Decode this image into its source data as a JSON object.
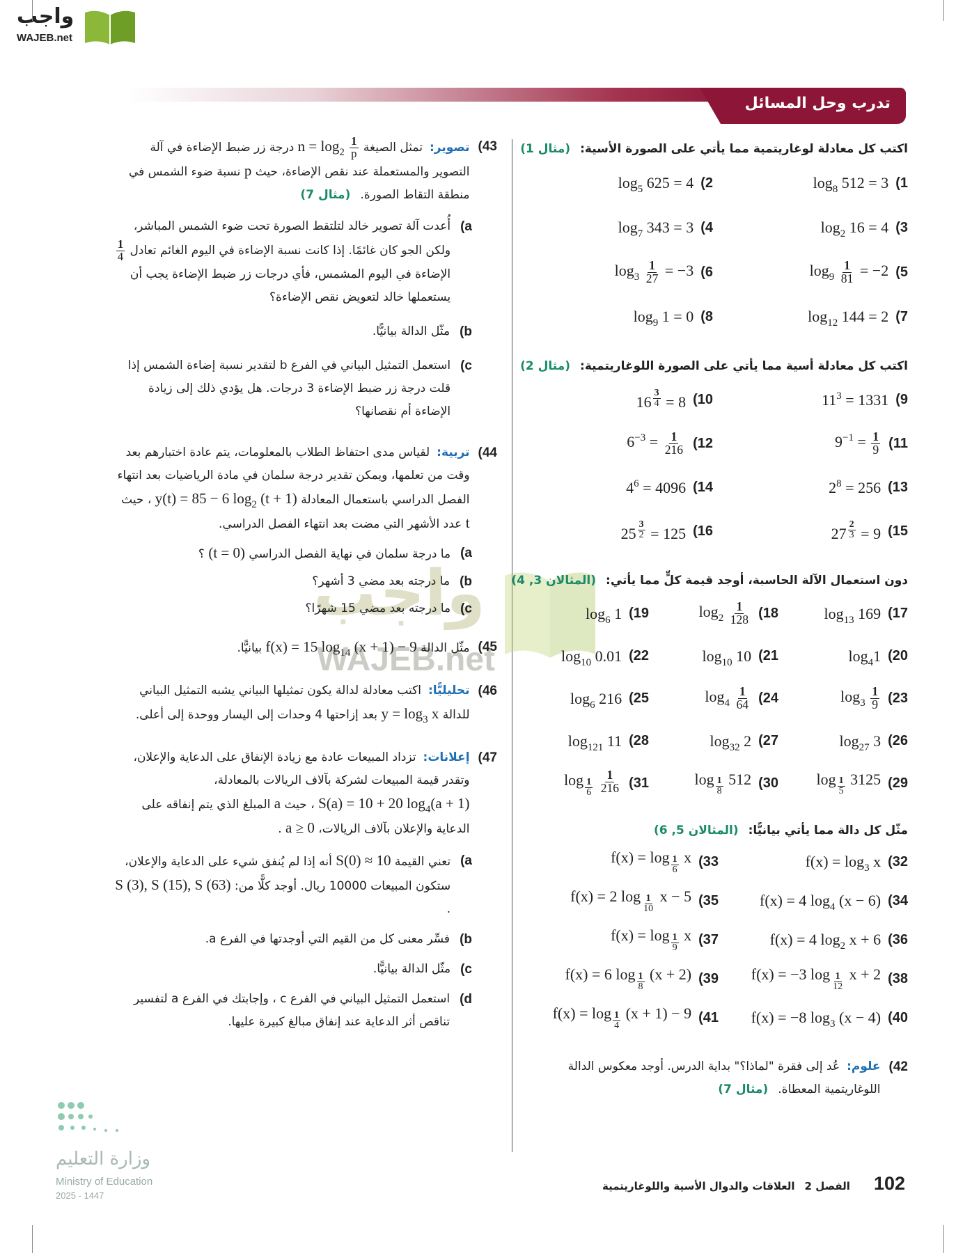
{
  "logo": {
    "ar": "واجب",
    "en": "WAJEB.net"
  },
  "header": {
    "title": "تدرب وحل المسائل"
  },
  "sections": [
    {
      "instruction": "اكتب كل معادلة لوغاريتمية مما يأتي على الصورة الأسية:",
      "ref": "(مثال 1)",
      "items": [
        {
          "num": "1)",
          "expr": "log_{8} 512 = 3"
        },
        {
          "num": "2)",
          "expr": "log_{5} 625 = 4"
        },
        {
          "num": "3)",
          "expr": "log_{2} 16 = 4"
        },
        {
          "num": "4)",
          "expr": "log_{7} 343 = 3"
        },
        {
          "num": "5)",
          "expr": "log_{9} \\frac{1}{81} = −2"
        },
        {
          "num": "6)",
          "expr": "log_{3} \\frac{1}{27} = −3"
        },
        {
          "num": "7)",
          "expr": "log_{12} 144 = 2"
        },
        {
          "num": "8)",
          "expr": "log_{9} 1 = 0"
        }
      ]
    },
    {
      "instruction": "اكتب كل معادلة أسية مما يأتي على الصورة اللوغاريتمية:",
      "ref": "(مثال 2)",
      "items": [
        {
          "num": "9)",
          "expr": "11^{3} = 1331"
        },
        {
          "num": "10)",
          "expr": "16^{\\frac{3}{4}} = 8"
        },
        {
          "num": "11)",
          "expr": "9^{−1} = \\frac{1}{9}"
        },
        {
          "num": "12)",
          "expr": "6^{−3} = \\frac{1}{216}"
        },
        {
          "num": "13)",
          "expr": "2^{8} = 256"
        },
        {
          "num": "14)",
          "expr": "4^{6} = 4096"
        },
        {
          "num": "15)",
          "expr": "27^{\\frac{2}{3}} = 9"
        },
        {
          "num": "16)",
          "expr": "25^{\\frac{3}{2}} = 125"
        }
      ]
    },
    {
      "instruction": "دون استعمال الآلة الحاسبة، أوجد قيمة كلٍّ مما يأتي:",
      "ref": "(المثالان 3, 4)",
      "items": [
        {
          "num": "17)",
          "expr": "log_{13} 169"
        },
        {
          "num": "18)",
          "expr": "log_{2} \\frac{1}{128}"
        },
        {
          "num": "19)",
          "expr": "log_{6} 1"
        },
        {
          "num": "20)",
          "expr": "log_{4}1"
        },
        {
          "num": "21)",
          "expr": "log_{10} 10"
        },
        {
          "num": "22)",
          "expr": "log_{10} 0.01"
        },
        {
          "num": "23)",
          "expr": "log_{3} \\frac{1}{9}"
        },
        {
          "num": "24)",
          "expr": "log_{4} \\frac{1}{64}"
        },
        {
          "num": "25)",
          "expr": "log_{6} 216"
        },
        {
          "num": "26)",
          "expr": "log_{27} 3"
        },
        {
          "num": "27)",
          "expr": "log_{32} 2"
        },
        {
          "num": "28)",
          "expr": "log_{121} 11"
        },
        {
          "num": "29)",
          "expr": "log_{\\frac{1}{5}} 3125"
        },
        {
          "num": "30)",
          "expr": "log_{\\frac{1}{8}} 512"
        },
        {
          "num": "31)",
          "expr": "log_{\\frac{1}{6}} \\frac{1}{216}"
        }
      ]
    },
    {
      "instruction": "مثّل كل دالة مما يأتي بيانيًّا:",
      "ref": "(المثالان 5, 6)",
      "items": [
        {
          "num": "32)",
          "expr": "f(x) = log_{3} x"
        },
        {
          "num": "33)",
          "expr": "f(x) = log_{\\frac{1}{6}} x"
        },
        {
          "num": "34)",
          "expr": "f(x) = 4 log_{4} (x − 6)"
        },
        {
          "num": "35)",
          "expr": "f(x) = 2 log_{\\frac{1}{10}} x − 5"
        },
        {
          "num": "36)",
          "expr": "f(x) = 4 log_{2} x + 6"
        },
        {
          "num": "37)",
          "expr": "f(x) = log_{\\frac{1}{9}} x"
        },
        {
          "num": "38)",
          "expr": "f(x) = −3 log_{\\frac{1}{12}} x + 2"
        },
        {
          "num": "39)",
          "expr": "f(x) = 6 log_{\\frac{1}{8}} (x + 2)"
        },
        {
          "num": "40)",
          "expr": "f(x) = −8 log_{3} (x − 4)"
        },
        {
          "num": "41)",
          "expr": "f(x) = log_{\\frac{1}{4}} (x + 1) − 9"
        }
      ]
    }
  ],
  "p42": {
    "num": "42)",
    "label": "علوم:",
    "text": "عُد إلى فقرة \"لماذا؟\" بداية الدرس. أوجد معكوس الدالة اللوغاريتمية المعطاة.",
    "ref": "(مثال 7)"
  },
  "p43": {
    "num": "43)",
    "label": "تصوير:",
    "text": "تمثل الصيغة $n = log_{2} \\frac{1}{p}$ درجة زر ضبط الإضاءة في آلة التصوير والمستعملة عند نقص الإضاءة، حيث $p$ نسبة ضوء الشمس في منطقة التقاط الصورة.",
    "ref": "(مثال 7)",
    "parts": [
      {
        "label": "a)",
        "text": "أُعدت آلة تصوير خالد لتلتقط الصورة تحت ضوء الشمس المباشر، ولكن الجو كان غائمًا. إذا كانت نسبة الإضاءة في اليوم الغائم تعادل $\\frac{1}{4}$ الإضاءة في اليوم المشمس، فأي درجات زر ضبط الإضاءة يجب أن يستعملها خالد لتعويض نقص الإضاءة؟"
      },
      {
        "label": "b)",
        "text": "مثّل الدالة بيانيًّا."
      },
      {
        "label": "c)",
        "text": "استعمل التمثيل البياني في الفرع b لتقدير نسبة إضاءة الشمس إذا قلت درجة زر ضبط الإضاءة 3 درجات. هل يؤدي ذلك إلى زيادة الإضاءة أم نقصانها؟"
      }
    ]
  },
  "p44": {
    "num": "44)",
    "label": "تربية:",
    "text": "لقياس مدى احتفاظ الطلاب بالمعلومات، يتم عادة اختبارهم بعد وقت من تعلمها، ويمكن تقدير درجة سلمان في مادة الرياضيات بعد انتهاء الفصل الدراسي باستعمال المعادلة $y(t) = 85 − 6 log_{2} (t + 1)$ ، حيث $t$ عدد الأشهر التي مضت بعد انتهاء الفصل الدراسي.",
    "parts": [
      {
        "label": "a)",
        "text": "ما درجة سلمان في نهاية الفصل الدراسي $(t = 0)$ ؟"
      },
      {
        "label": "b)",
        "text": "ما درجته بعد مضي 3 أشهر؟"
      },
      {
        "label": "c)",
        "text": "ما درجته بعد مضي 15 شهرًا؟"
      }
    ]
  },
  "p45": {
    "num": "45)",
    "text": "مثّل الدالة $f(x) = 15 log_{14} (x + 1) − 9$ بيانيًّا."
  },
  "p46": {
    "num": "46)",
    "label": "تحليليًّا:",
    "text": "اكتب معادلة لدالة يكون تمثيلها البياني يشبه التمثيل البياني للدالة $y = log_{3} x$ بعد إزاحتها 4 وحدات إلى اليسار ووحدة إلى أعلى."
  },
  "p47": {
    "num": "47)",
    "label": "إعلانات:",
    "text": "تزداد المبيعات عادة مع زيادة الإنفاق على الدعاية والإعلان، وتقدر قيمة المبيعات لشركة بآلاف الريالات بالمعادلة، $S(a) = 10 + 20 log_{4}(a + 1)$ ، حيث $a$ المبلغ الذي يتم إنفاقه على الدعاية والإعلان بآلاف الريالات، $a ≥ 0$ .",
    "parts": [
      {
        "label": "a)",
        "text": "تعني القيمة $S(0) ≈ 10$ أنه إذا لم يُنفق شيء على الدعاية والإعلان، ستكون المبيعات 10000 ريال. أوجد كلًّا من: $S (3), S (15), S (63)$."
      },
      {
        "label": "b)",
        "text": "فسِّر معنى كل من القيم التي أوجدتها في الفرع a."
      },
      {
        "label": "c)",
        "text": "مثّل الدالة بيانيًّا."
      },
      {
        "label": "d)",
        "text": "استعمل التمثيل البياني في الفرع c ، وإجابتك في الفرع a لتفسير تناقص أثر الدعاية عند إنفاق مبالغ كبيرة عليها."
      }
    ]
  },
  "footer": {
    "page": "102",
    "chapter": "الفصل 2",
    "title": "العلاقات والدوال الأسية واللوغاريتمية"
  },
  "ministry": {
    "ar": "وزارة التعليم",
    "en": "Ministry of Education",
    "year": "2025 - 1447"
  },
  "watermark": {
    "ar": "واجب",
    "en": "WAJEB.net"
  },
  "colors": {
    "banner": "#8c1538",
    "example_ref": "#1a8a6a",
    "keyword": "#1f6fb5",
    "logo_green": "#7aa82a"
  }
}
